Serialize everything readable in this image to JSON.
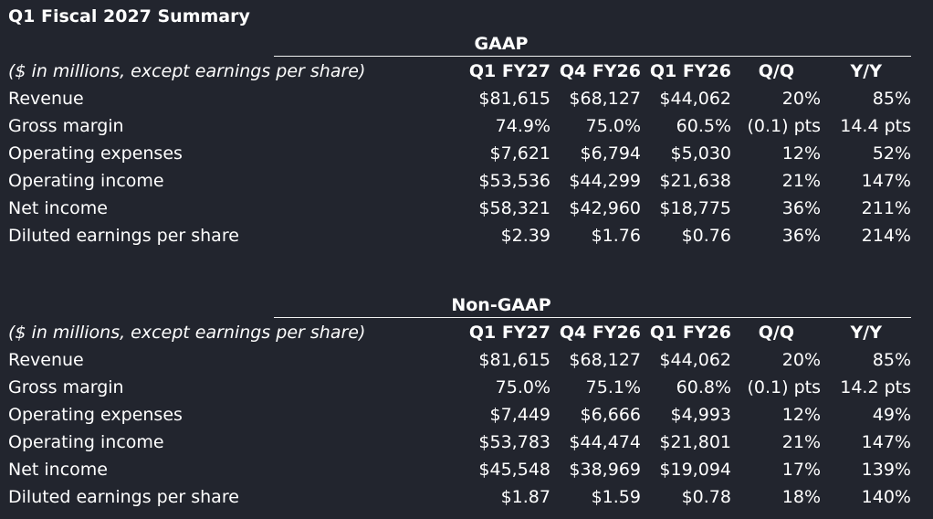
{
  "title": "Q1 Fiscal 2027 Summary",
  "sections": [
    {
      "header": "GAAP",
      "columns_label": "($ in millions, except earnings per share)",
      "columns": [
        "Q1 FY27",
        "Q4 FY26",
        "Q1 FY26",
        "Q/Q",
        "Y/Y"
      ],
      "rows": [
        {
          "label": "Revenue",
          "values": [
            "$81,615",
            "$68,127",
            "$44,062",
            "20%",
            "85%"
          ]
        },
        {
          "label": "Gross margin",
          "values": [
            "74.9%",
            "75.0%",
            "60.5%",
            "(0.1) pts",
            "14.4 pts"
          ]
        },
        {
          "label": "Operating expenses",
          "values": [
            "$7,621",
            "$6,794",
            "$5,030",
            "12%",
            "52%"
          ]
        },
        {
          "label": "Operating income",
          "values": [
            "$53,536",
            "$44,299",
            "$21,638",
            "21%",
            "147%"
          ]
        },
        {
          "label": "Net income",
          "values": [
            "$58,321",
            "$42,960",
            "$18,775",
            "36%",
            "211%"
          ]
        },
        {
          "label": "Diluted earnings per share",
          "values": [
            "$2.39",
            "$1.76",
            "$0.76",
            "36%",
            "214%"
          ]
        }
      ]
    },
    {
      "header": "Non-GAAP",
      "columns_label": "($ in millions, except earnings per share)",
      "columns": [
        "Q1 FY27",
        "Q4 FY26",
        "Q1 FY26",
        "Q/Q",
        "Y/Y"
      ],
      "rows": [
        {
          "label": "Revenue",
          "values": [
            "$81,615",
            "$68,127",
            "$44,062",
            "20%",
            "85%"
          ]
        },
        {
          "label": "Gross margin",
          "values": [
            "75.0%",
            "75.1%",
            "60.8%",
            "(0.1) pts",
            "14.2 pts"
          ]
        },
        {
          "label": "Operating expenses",
          "values": [
            "$7,449",
            "$6,666",
            "$4,993",
            "12%",
            "49%"
          ]
        },
        {
          "label": "Operating income",
          "values": [
            "$53,783",
            "$44,474",
            "$21,801",
            "21%",
            "147%"
          ]
        },
        {
          "label": "Net income",
          "values": [
            "$45,548",
            "$38,969",
            "$19,094",
            "17%",
            "139%"
          ]
        },
        {
          "label": "Diluted earnings per share",
          "values": [
            "$1.87",
            "$1.59",
            "$0.78",
            "18%",
            "140%"
          ]
        }
      ]
    }
  ]
}
